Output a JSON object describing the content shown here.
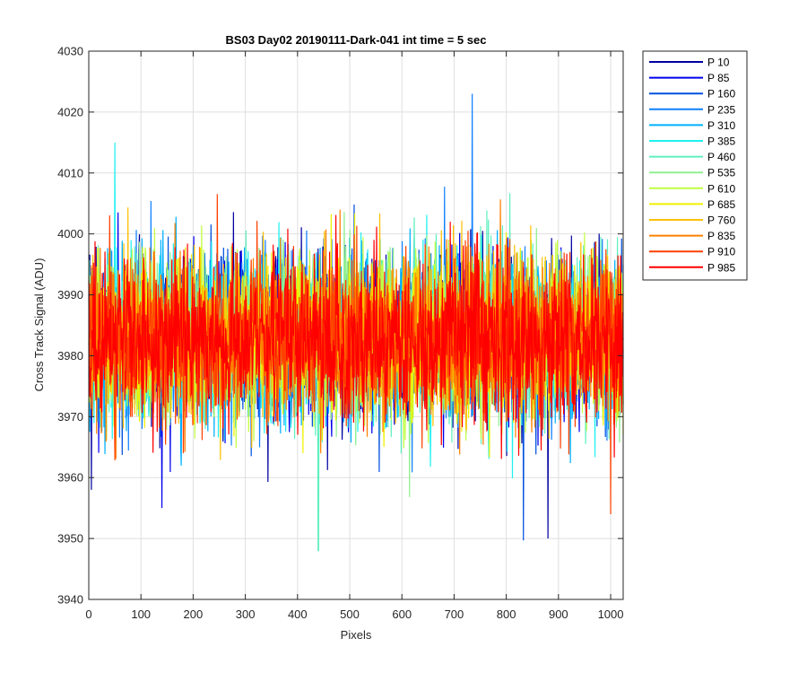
{
  "chart_data": {
    "type": "line",
    "title": "BS03 Day02 20190111-Dark-041 int time = 5 sec",
    "xlabel": "Pixels",
    "ylabel": "Cross Track Signal (ADU)",
    "xlim": [
      0,
      1024
    ],
    "ylim": [
      3940,
      4030
    ],
    "xticks": [
      0,
      100,
      200,
      300,
      400,
      500,
      600,
      700,
      800,
      900,
      1000
    ],
    "yticks": [
      3940,
      3950,
      3960,
      3970,
      3980,
      3990,
      4000,
      4010,
      4020,
      4030
    ],
    "grid": true,
    "legend_position": "outside-top-right",
    "samples_per_series": 1024,
    "noise_mean": 3983,
    "noise_std": 6.5,
    "series": [
      {
        "name": "P 10",
        "color": "#0000a0"
      },
      {
        "name": "P 85",
        "color": "#0000ee"
      },
      {
        "name": "P 160",
        "color": "#0050e0"
      },
      {
        "name": "P 235",
        "color": "#1080ff"
      },
      {
        "name": "P 310",
        "color": "#00b0ff"
      },
      {
        "name": "P 385",
        "color": "#20f0f0"
      },
      {
        "name": "P 460",
        "color": "#60f0c0"
      },
      {
        "name": "P 535",
        "color": "#90f090"
      },
      {
        "name": "P 610",
        "color": "#c0ff40"
      },
      {
        "name": "P 685",
        "color": "#f0f000"
      },
      {
        "name": "P 760",
        "color": "#ffc000"
      },
      {
        "name": "P 835",
        "color": "#ff8000"
      },
      {
        "name": "P 910",
        "color": "#ff4000"
      },
      {
        "name": "P 985",
        "color": "#ff0000"
      }
    ],
    "annotations": [
      {
        "series": "P 235",
        "x": 735,
        "y": 4023
      },
      {
        "series": "P 385",
        "x": 50,
        "y": 4015
      },
      {
        "series": "P 460",
        "x": 440,
        "y": 3948
      },
      {
        "series": "P 10",
        "x": 880,
        "y": 3950
      },
      {
        "series": "P 85",
        "x": 140,
        "y": 3955
      },
      {
        "series": "P 910",
        "x": 1000,
        "y": 3954
      }
    ]
  }
}
